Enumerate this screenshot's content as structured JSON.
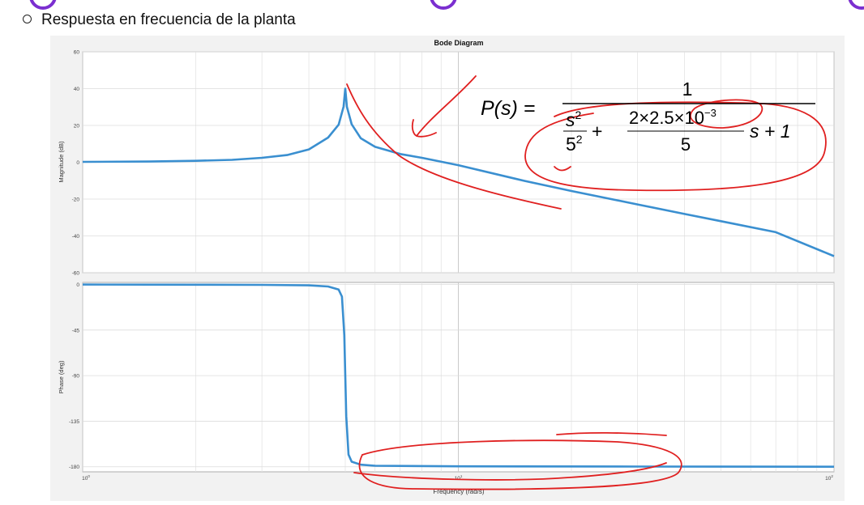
{
  "slide": {
    "bullet_text": "Respuesta en frecuencia de la planta"
  },
  "formula": {
    "lhs": "P(s) =",
    "numerator": "1",
    "term1_num": "s",
    "term1_num_exp": "2",
    "term1_den": "5",
    "term1_den_exp": "2",
    "plus1": "+",
    "term2_num": "2×2.5×10",
    "term2_num_exp": "−3",
    "term2_den": "5",
    "term2_tail": "s + 1"
  },
  "colors": {
    "curve": "#3a8fd0",
    "annotation": "#e02020",
    "decor": "#7b2fd0"
  },
  "chart_data": {
    "type": "line",
    "title": "Bode Diagram",
    "xlabel": "Frequency (rad/s)",
    "x_scale": "log",
    "xlim": [
      1,
      100
    ],
    "x_ticks": [
      {
        "value": 1,
        "label": "10",
        "exp": "0"
      },
      {
        "value": 10,
        "label": "10",
        "exp": "1"
      },
      {
        "value": 100,
        "label": "10",
        "exp": "2"
      }
    ],
    "grid": true,
    "magnitude": {
      "ylabel": "Magnitude (dB)",
      "ylim": [
        -60,
        60
      ],
      "yticks": [
        "60",
        "40",
        "20",
        "0",
        "-20",
        "-40",
        "-60"
      ],
      "ytick_values": [
        60,
        40,
        20,
        0,
        -20,
        -40,
        -60
      ],
      "series": [
        {
          "x": [
            1,
            1.5,
            2,
            2.5,
            3,
            3.5,
            4,
            4.5,
            4.8,
            4.95,
            5,
            5.05,
            5.2,
            5.5,
            6,
            7,
            8,
            10,
            15,
            20,
            30,
            40,
            50,
            70,
            100
          ],
          "y": [
            0.2,
            0.4,
            0.8,
            1.3,
            2.4,
            3.9,
            7.0,
            13.4,
            20.4,
            30.2,
            40.0,
            30.1,
            20.6,
            13.0,
            8.4,
            4.5,
            2.4,
            -1.6,
            -10.1,
            -15.6,
            -22.9,
            -28.1,
            -32.0,
            -38.0,
            -51.0
          ]
        }
      ]
    },
    "phase": {
      "ylabel": "Phase (deg)",
      "ylim": [
        -185,
        2
      ],
      "yticks": [
        "0",
        "-45",
        "-90",
        "-135",
        "-180"
      ],
      "ytick_values": [
        0,
        -45,
        -90,
        -135,
        -180
      ],
      "series": [
        {
          "x": [
            1,
            2,
            3,
            4,
            4.5,
            4.8,
            4.9,
            4.97,
            5,
            5.03,
            5.1,
            5.2,
            5.5,
            6,
            10,
            30,
            100
          ],
          "y": [
            -0.1,
            -0.2,
            -0.4,
            -0.9,
            -2,
            -5,
            -12,
            -50,
            -90,
            -130,
            -168,
            -175,
            -178,
            -179,
            -179.6,
            -179.8,
            -180
          ]
        }
      ]
    }
  }
}
